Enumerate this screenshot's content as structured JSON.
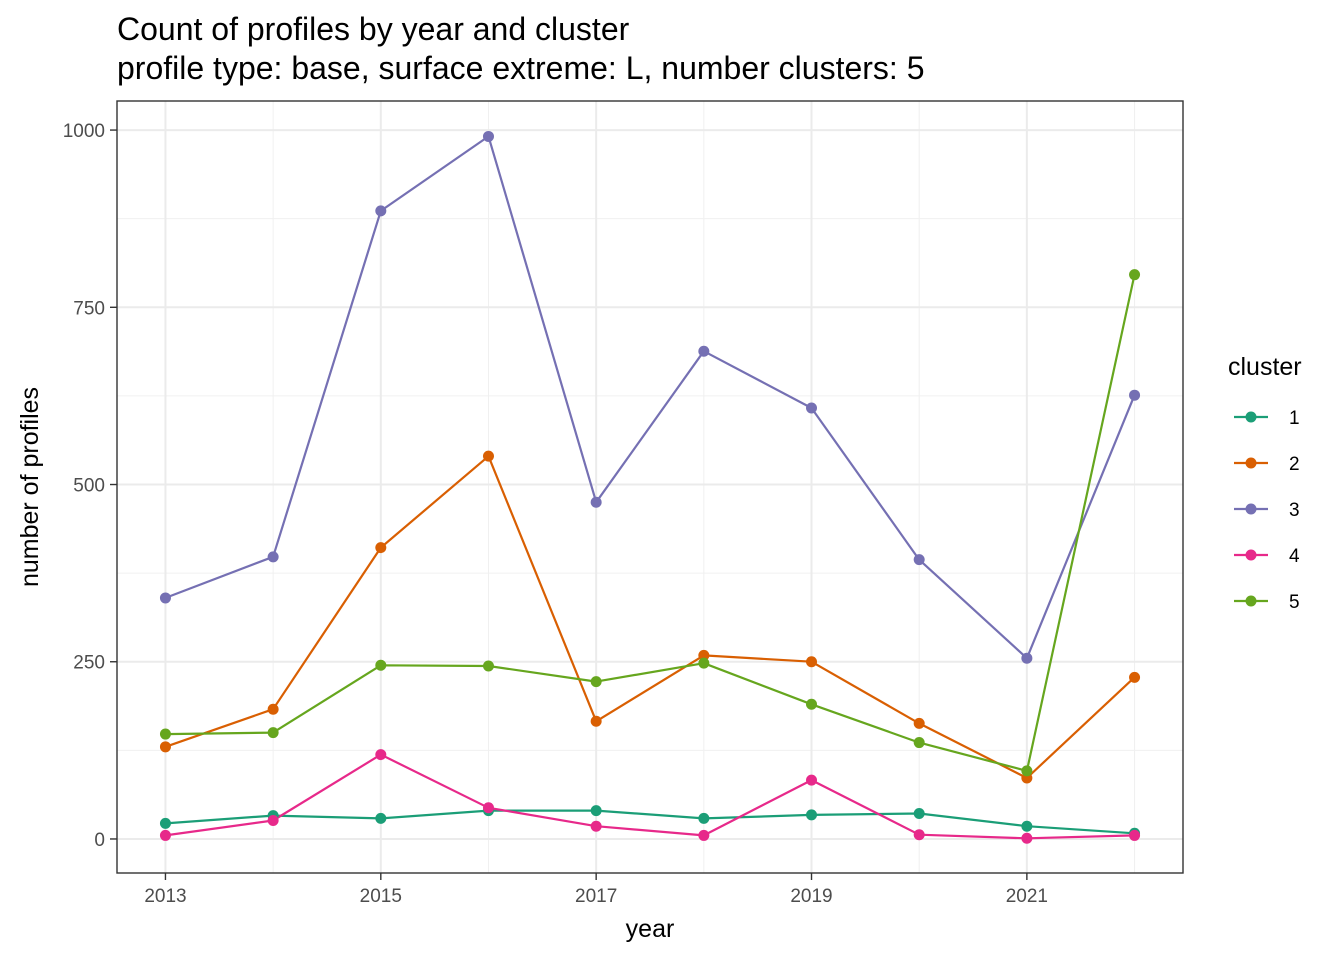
{
  "chart_data": {
    "type": "line",
    "title": "Count of profiles by year and cluster",
    "subtitle": "profile type: base, surface extreme: L, number clusters: 5",
    "xlabel": "year",
    "ylabel": "number of profiles",
    "xlim": [
      2012.55,
      2022.45
    ],
    "ylim": [
      -48,
      1041
    ],
    "x_ticks": [
      2013,
      2015,
      2017,
      2019,
      2021
    ],
    "y_ticks": [
      0,
      250,
      500,
      750,
      1000
    ],
    "grid": true,
    "legend_position": "right",
    "legend_title": "cluster",
    "x": [
      2013,
      2014,
      2015,
      2016,
      2017,
      2018,
      2019,
      2020,
      2021,
      2022
    ],
    "series": [
      {
        "name": "1",
        "color": "#1B9E77",
        "values": [
          22,
          33,
          29,
          40,
          40,
          29,
          34,
          36,
          18,
          8
        ]
      },
      {
        "name": "2",
        "color": "#D95F02",
        "values": [
          130,
          183,
          411,
          540,
          166,
          259,
          250,
          163,
          86,
          228
        ]
      },
      {
        "name": "3",
        "color": "#7570B3",
        "values": [
          340,
          398,
          886,
          991,
          475,
          688,
          608,
          394,
          255,
          626
        ]
      },
      {
        "name": "4",
        "color": "#E7298A",
        "values": [
          5,
          26,
          119,
          44,
          18,
          5,
          83,
          6,
          1,
          5
        ]
      },
      {
        "name": "5",
        "color": "#66A61E",
        "values": [
          148,
          150,
          245,
          244,
          222,
          248,
          190,
          136,
          96,
          796
        ]
      }
    ]
  }
}
